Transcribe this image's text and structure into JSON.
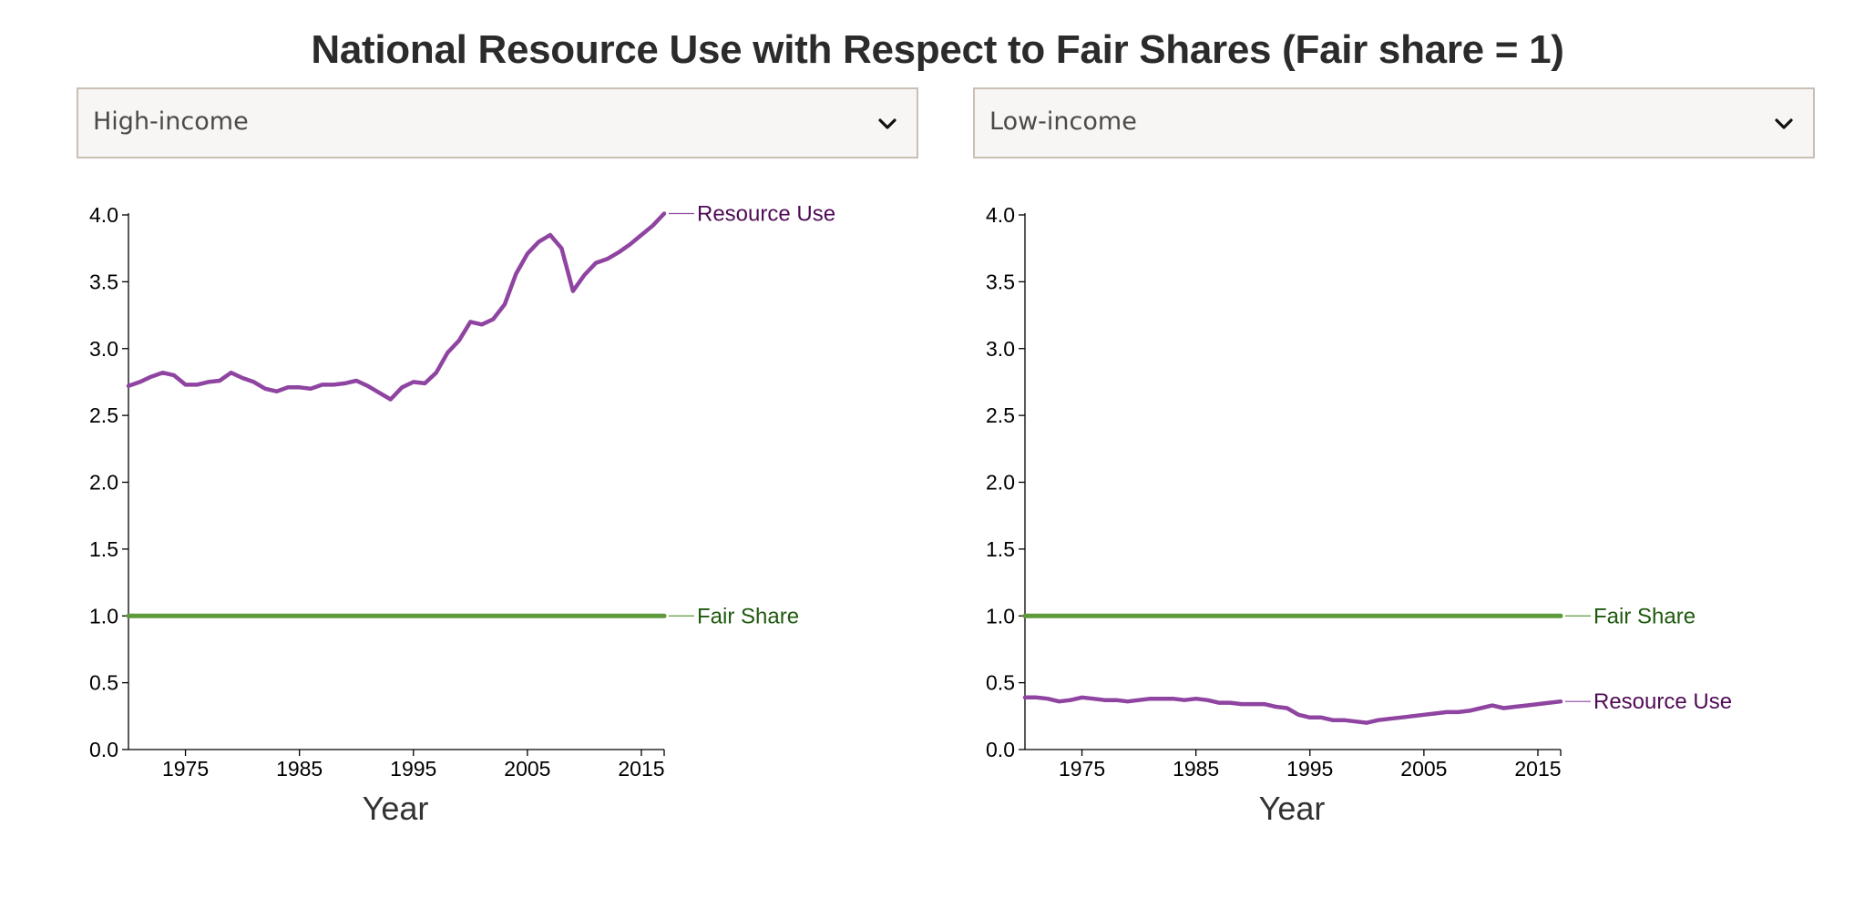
{
  "title": "National Resource Use with Respect to Fair Shares (Fair share = 1)",
  "dropdowns": {
    "left": {
      "selected": "High-income"
    },
    "right": {
      "selected": "Low-income"
    }
  },
  "colors": {
    "resource_use": "#8e44a0",
    "resource_use_label": "#4f0b55",
    "fair_share": "#5e9a3c",
    "fair_share_label": "#1f5a0e",
    "axis": "#000000"
  },
  "chart_data": [
    {
      "type": "line",
      "group": "High-income",
      "xlabel": "Year",
      "ylabel": "",
      "xlim": [
        1970,
        2017
      ],
      "ylim": [
        0,
        4
      ],
      "x_ticks": [
        "1975",
        "1985",
        "1995",
        "2005",
        "2015"
      ],
      "y_ticks": [
        "0.0",
        "0.5",
        "1.0",
        "1.5",
        "2.0",
        "2.5",
        "3.0",
        "3.5",
        "4.0"
      ],
      "x": [
        1970,
        1971,
        1972,
        1973,
        1974,
        1975,
        1976,
        1977,
        1978,
        1979,
        1980,
        1981,
        1982,
        1983,
        1984,
        1985,
        1986,
        1987,
        1988,
        1989,
        1990,
        1991,
        1992,
        1993,
        1994,
        1995,
        1996,
        1997,
        1998,
        1999,
        2000,
        2001,
        2002,
        2003,
        2004,
        2005,
        2006,
        2007,
        2008,
        2009,
        2010,
        2011,
        2012,
        2013,
        2014,
        2015,
        2016,
        2017
      ],
      "series": [
        {
          "name": "Resource Use",
          "label": "Resource Use",
          "values": [
            2.72,
            2.75,
            2.79,
            2.82,
            2.8,
            2.73,
            2.73,
            2.75,
            2.76,
            2.82,
            2.78,
            2.75,
            2.7,
            2.68,
            2.71,
            2.71,
            2.7,
            2.73,
            2.73,
            2.74,
            2.76,
            2.72,
            2.67,
            2.62,
            2.71,
            2.75,
            2.74,
            2.82,
            2.97,
            3.06,
            3.2,
            3.18,
            3.22,
            3.33,
            3.56,
            3.71,
            3.8,
            3.85,
            3.75,
            3.43,
            3.55,
            3.64,
            3.67,
            3.72,
            3.78,
            3.85,
            3.92,
            4.01
          ]
        },
        {
          "name": "Fair Share",
          "label": "Fair Share",
          "values": [
            1,
            1,
            1,
            1,
            1,
            1,
            1,
            1,
            1,
            1,
            1,
            1,
            1,
            1,
            1,
            1,
            1,
            1,
            1,
            1,
            1,
            1,
            1,
            1,
            1,
            1,
            1,
            1,
            1,
            1,
            1,
            1,
            1,
            1,
            1,
            1,
            1,
            1,
            1,
            1,
            1,
            1,
            1,
            1,
            1,
            1,
            1,
            1
          ]
        }
      ]
    },
    {
      "type": "line",
      "group": "Low-income",
      "xlabel": "Year",
      "ylabel": "",
      "xlim": [
        1970,
        2017
      ],
      "ylim": [
        0,
        4
      ],
      "x_ticks": [
        "1975",
        "1985",
        "1995",
        "2005",
        "2015"
      ],
      "y_ticks": [
        "0.0",
        "0.5",
        "1.0",
        "1.5",
        "2.0",
        "2.5",
        "3.0",
        "3.5",
        "4.0"
      ],
      "x": [
        1970,
        1971,
        1972,
        1973,
        1974,
        1975,
        1976,
        1977,
        1978,
        1979,
        1980,
        1981,
        1982,
        1983,
        1984,
        1985,
        1986,
        1987,
        1988,
        1989,
        1990,
        1991,
        1992,
        1993,
        1994,
        1995,
        1996,
        1997,
        1998,
        1999,
        2000,
        2001,
        2002,
        2003,
        2004,
        2005,
        2006,
        2007,
        2008,
        2009,
        2010,
        2011,
        2012,
        2013,
        2014,
        2015,
        2016,
        2017
      ],
      "series": [
        {
          "name": "Resource Use",
          "label": "Resource Use",
          "values": [
            0.39,
            0.39,
            0.38,
            0.36,
            0.37,
            0.39,
            0.38,
            0.37,
            0.37,
            0.36,
            0.37,
            0.38,
            0.38,
            0.38,
            0.37,
            0.38,
            0.37,
            0.35,
            0.35,
            0.34,
            0.34,
            0.34,
            0.32,
            0.31,
            0.26,
            0.24,
            0.24,
            0.22,
            0.22,
            0.21,
            0.2,
            0.22,
            0.23,
            0.24,
            0.25,
            0.26,
            0.27,
            0.28,
            0.28,
            0.29,
            0.31,
            0.33,
            0.31,
            0.32,
            0.33,
            0.34,
            0.35,
            0.36
          ]
        },
        {
          "name": "Fair Share",
          "label": "Fair Share",
          "values": [
            1,
            1,
            1,
            1,
            1,
            1,
            1,
            1,
            1,
            1,
            1,
            1,
            1,
            1,
            1,
            1,
            1,
            1,
            1,
            1,
            1,
            1,
            1,
            1,
            1,
            1,
            1,
            1,
            1,
            1,
            1,
            1,
            1,
            1,
            1,
            1,
            1,
            1,
            1,
            1,
            1,
            1,
            1,
            1,
            1,
            1,
            1,
            1
          ]
        }
      ]
    }
  ]
}
